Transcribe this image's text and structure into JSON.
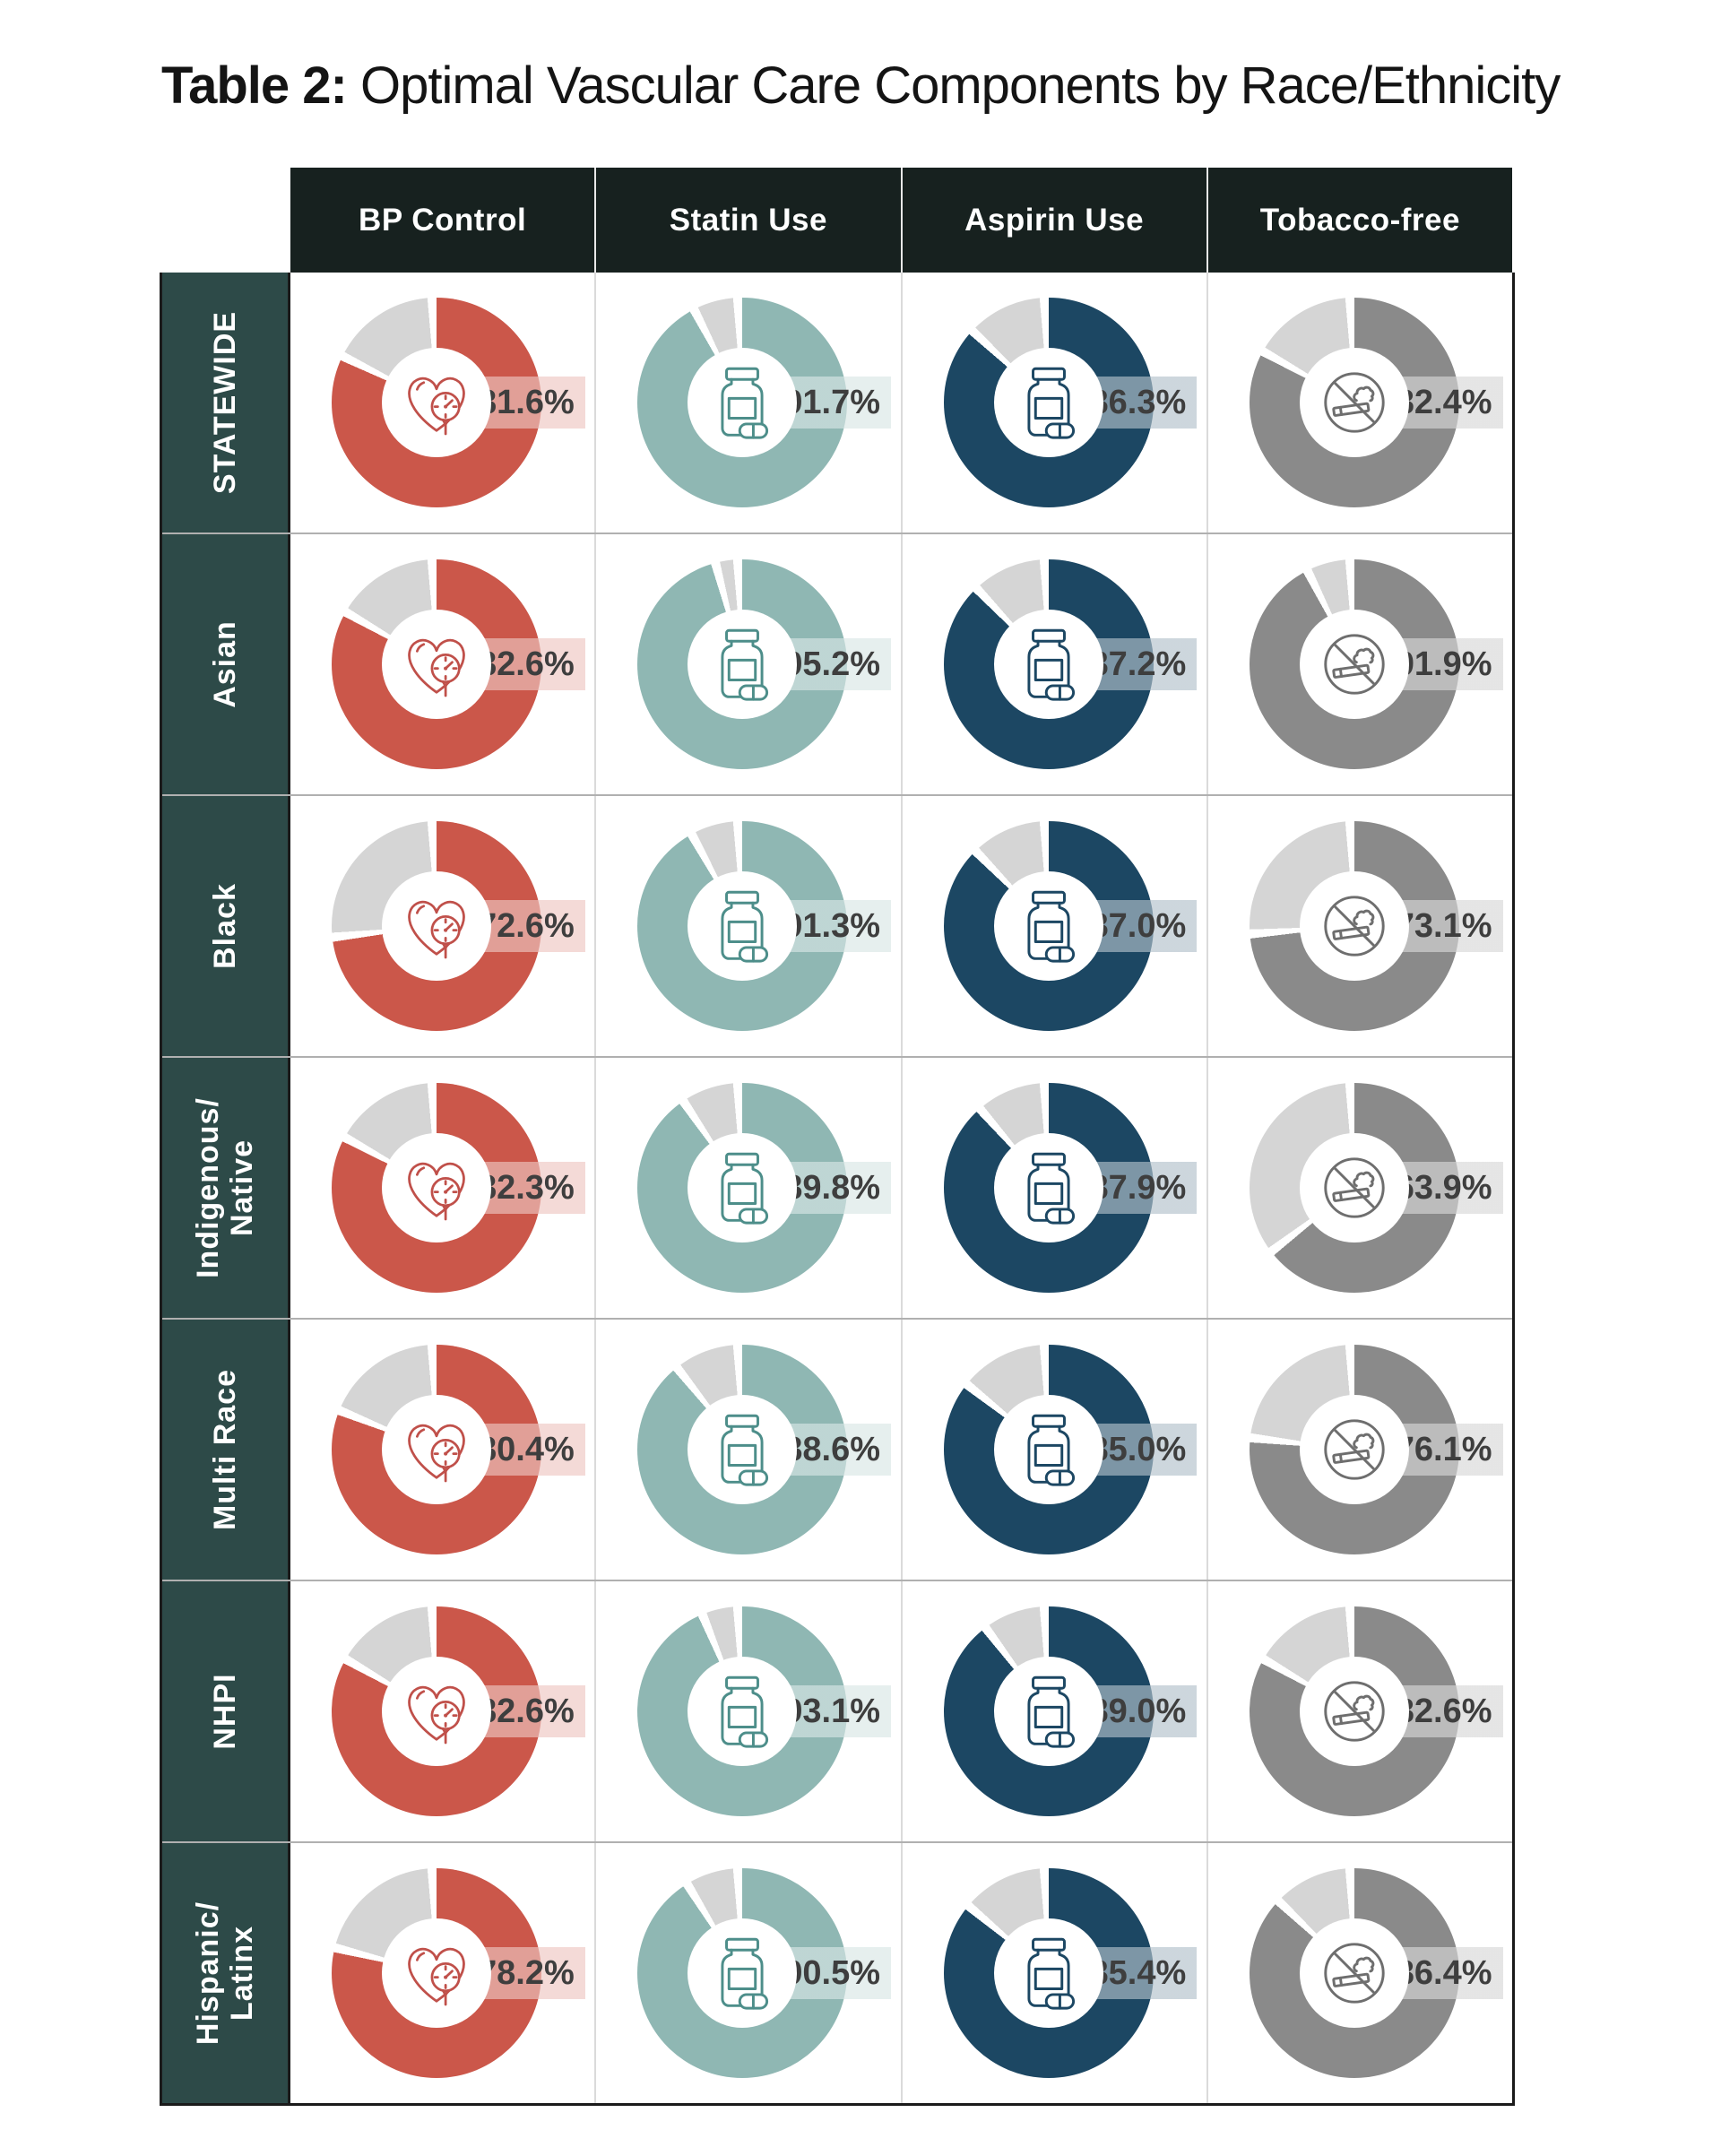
{
  "title": {
    "prefix": "Table 2:",
    "rest": " Optimal Vascular Care Components by Race/Ethnicity"
  },
  "columns": [
    {
      "id": "bp-control",
      "label": "BP Control",
      "icon": "heart-bp-icon",
      "symbol": "sym-heart-bp",
      "color": "#cb574a",
      "icon_color": "#c0504a"
    },
    {
      "id": "statin-use",
      "label": "Statin Use",
      "icon": "pill-bottle-icon",
      "symbol": "sym-pill-bottle",
      "color": "#8fb7b3",
      "icon_color": "#4d8e8a"
    },
    {
      "id": "aspirin-use",
      "label": "Aspirin Use",
      "icon": "pill-bottle-icon",
      "symbol": "sym-pill-bottle",
      "color": "#1c4763",
      "icon_color": "#1c4763"
    },
    {
      "id": "tobacco-free",
      "label": "Tobacco-free",
      "icon": "no-smoking-icon",
      "symbol": "sym-no-smoking",
      "color": "#8a8a8a",
      "icon_color": "#6e6e6e"
    }
  ],
  "rows": [
    {
      "label": "STATEWIDE",
      "values": [
        "81.6%",
        "91.7%",
        "86.3%",
        "82.4%"
      ]
    },
    {
      "label": "Asian",
      "values": [
        "82.6%",
        "95.2%",
        "87.2%",
        "91.9%"
      ]
    },
    {
      "label": "Black",
      "values": [
        "72.6%",
        "91.3%",
        "87.0%",
        "73.1%"
      ]
    },
    {
      "label": "Indigenous/\nNative",
      "values": [
        "82.3%",
        "89.8%",
        "87.9%",
        "63.9%"
      ]
    },
    {
      "label": "Multi Race",
      "values": [
        "80.4%",
        "88.6%",
        "85.0%",
        "76.1%"
      ]
    },
    {
      "label": "NHPI",
      "values": [
        "82.6%",
        "93.1%",
        "89.0%",
        "82.6%"
      ]
    },
    {
      "label": "Hispanic/\nLatinx",
      "values": [
        "78.2%",
        "90.5%",
        "85.4%",
        "86.4%"
      ]
    }
  ],
  "colors": {
    "header_bg": "#17211f",
    "row_label_bg": "#2d4a48",
    "remainder": "#d5d5d5",
    "slice_gap": "#ffffff",
    "percent_text": "#3e3e3e",
    "grid_line": "#b0b0b0",
    "column_line": "#dadada",
    "outer_border": "#1a1a1a"
  },
  "chart_data": {
    "type": "pie",
    "variant": "donut-grid",
    "title": "Table 2: Optimal Vascular Care Components by Race/Ethnicity",
    "unit": "%",
    "donut_start_angle": "top",
    "donut_direction": "clockwise",
    "remainder_color": "#d5d5d5",
    "categories": [
      "STATEWIDE",
      "Asian",
      "Black",
      "Indigenous/Native",
      "Multi Race",
      "NHPI",
      "Hispanic/Latinx"
    ],
    "series": [
      {
        "name": "BP Control",
        "color": "#cb574a",
        "values": [
          81.6,
          82.6,
          72.6,
          82.3,
          80.4,
          82.6,
          78.2
        ]
      },
      {
        "name": "Statin Use",
        "color": "#8fb7b3",
        "values": [
          91.7,
          95.2,
          91.3,
          89.8,
          88.6,
          93.1,
          90.5
        ]
      },
      {
        "name": "Aspirin Use",
        "color": "#1c4763",
        "values": [
          86.3,
          87.2,
          87.0,
          87.9,
          85.0,
          89.0,
          85.4
        ]
      },
      {
        "name": "Tobacco-free",
        "color": "#8a8a8a",
        "values": [
          82.4,
          91.9,
          73.1,
          63.9,
          76.1,
          82.6,
          86.4
        ]
      }
    ]
  }
}
